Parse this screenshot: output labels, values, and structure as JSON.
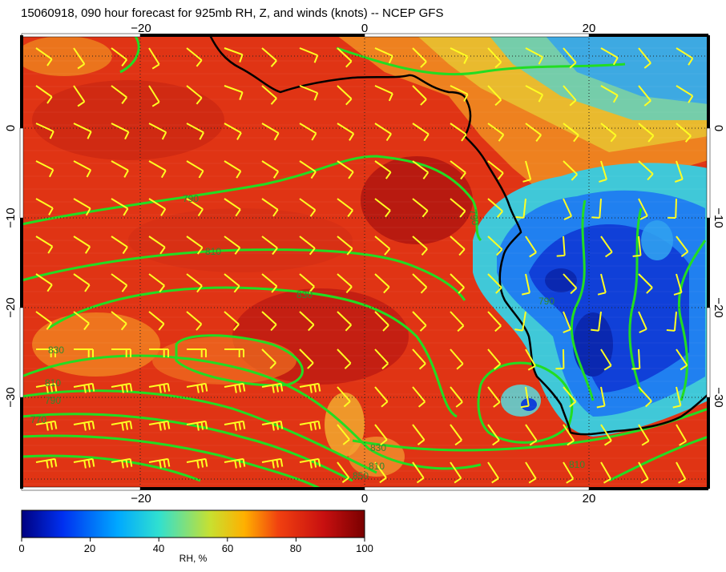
{
  "title": "15060918, 090 hour forecast for 925mb RH, Z, and winds (knots) -- NCEP GFS",
  "map": {
    "lon_ticks": [
      "−20",
      "0",
      "20"
    ],
    "lat_ticks": [
      "0",
      "−10",
      "−20",
      "−30"
    ],
    "contour_labels": [
      "790",
      "810",
      "830",
      "810",
      "790",
      "770",
      "830",
      "810",
      "790",
      "850",
      "830",
      "790",
      "810"
    ],
    "colors": {
      "coast": "#000000",
      "contours": "#22dd22",
      "barbs": "#ffff22",
      "grid": "#222222"
    }
  },
  "colorbar": {
    "ticks": [
      "0",
      "20",
      "40",
      "60",
      "80",
      "100"
    ],
    "label": "RH, %",
    "scale": [
      "#000080",
      "#0030f0",
      "#00a8ff",
      "#30e0d0",
      "#c8e030",
      "#ffb000",
      "#f04010",
      "#c81010",
      "#7a0000"
    ]
  }
}
